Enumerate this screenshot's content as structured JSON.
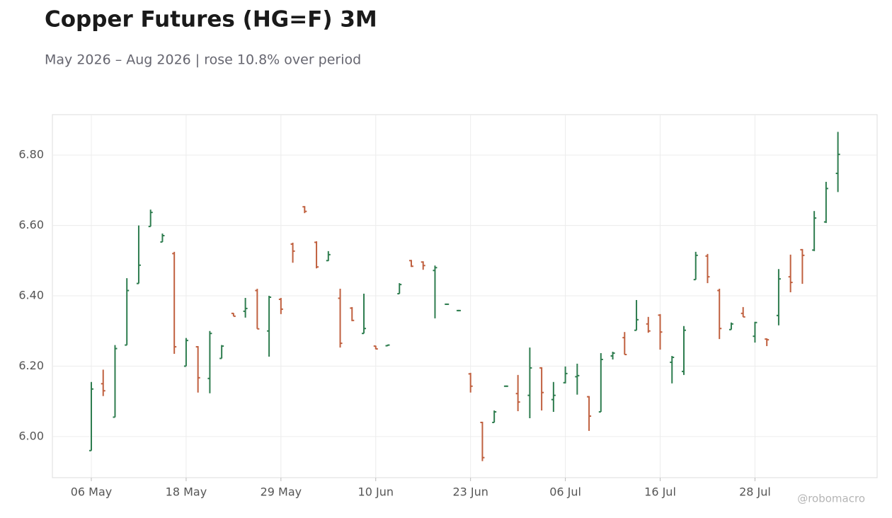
{
  "chart_data": {
    "type": "ohlc",
    "title": "Copper Futures (HG=F) 3M",
    "subtitle": "May 2026 – Aug 2026 | rose 10.8% over period",
    "watermark": "@robomacro",
    "categories": [
      "06 May",
      null,
      null,
      null,
      null,
      null,
      null,
      null,
      "18 May",
      null,
      null,
      null,
      null,
      null,
      null,
      null,
      "29 May",
      null,
      null,
      null,
      null,
      null,
      null,
      null,
      "10 Jun",
      null,
      null,
      null,
      null,
      null,
      null,
      null,
      "23 Jun",
      null,
      null,
      null,
      null,
      null,
      null,
      null,
      "06 Jul",
      null,
      null,
      null,
      null,
      null,
      null,
      null,
      "16 Jul",
      null,
      null,
      null,
      null,
      null,
      null,
      null,
      "28 Jul",
      null,
      null,
      null,
      null,
      null,
      null,
      null
    ],
    "open": [
      5.96,
      6.15,
      6.055,
      6.26,
      6.435,
      6.597,
      6.553,
      6.52,
      6.2,
      6.255,
      6.165,
      6.222,
      6.35,
      6.356,
      6.415,
      6.3,
      6.39,
      6.547,
      6.653,
      6.552,
      6.5,
      6.393,
      6.365,
      6.293,
      6.257,
      6.258,
      6.406,
      6.5,
      6.496,
      6.472,
      6.376,
      6.358,
      6.178,
      6.04,
      6.04,
      6.143,
      6.122,
      6.117,
      6.195,
      6.105,
      6.153,
      6.17,
      6.113,
      6.07,
      6.229,
      6.281,
      6.302,
      6.32,
      6.345,
      6.211,
      6.185,
      6.446,
      6.513,
      6.415,
      6.304,
      6.35,
      6.285,
      6.277,
      6.344,
      6.454,
      6.531,
      6.53,
      6.61,
      6.748
    ],
    "high": [
      6.155,
      6.19,
      6.26,
      6.45,
      6.6,
      6.645,
      6.577,
      6.525,
      6.28,
      6.257,
      6.3,
      6.26,
      6.351,
      6.394,
      6.42,
      6.4,
      6.394,
      6.551,
      6.655,
      6.555,
      6.527,
      6.42,
      6.368,
      6.406,
      6.258,
      6.261,
      6.436,
      6.502,
      6.498,
      6.486,
      6.378,
      6.36,
      6.181,
      6.042,
      6.074,
      6.145,
      6.175,
      6.253,
      6.197,
      6.155,
      6.199,
      6.207,
      6.115,
      6.237,
      6.241,
      6.297,
      6.388,
      6.34,
      6.348,
      6.229,
      6.314,
      6.525,
      6.519,
      6.42,
      6.324,
      6.368,
      6.326,
      6.279,
      6.476,
      6.517,
      6.533,
      6.641,
      6.724,
      6.866
    ],
    "low": [
      5.96,
      6.115,
      6.055,
      6.26,
      6.435,
      6.597,
      6.553,
      6.235,
      6.2,
      6.125,
      6.123,
      6.222,
      6.342,
      6.338,
      6.306,
      6.227,
      6.348,
      6.494,
      6.635,
      6.478,
      6.499,
      6.253,
      6.328,
      6.293,
      6.248,
      6.257,
      6.406,
      6.482,
      6.474,
      6.336,
      6.374,
      6.356,
      6.125,
      5.93,
      6.04,
      6.141,
      6.072,
      6.052,
      6.074,
      6.07,
      6.151,
      6.119,
      6.016,
      6.07,
      6.219,
      6.233,
      6.302,
      6.295,
      6.247,
      6.151,
      6.175,
      6.446,
      6.436,
      6.277,
      6.304,
      6.34,
      6.267,
      6.257,
      6.316,
      6.41,
      6.434,
      6.527,
      6.607,
      6.695
    ],
    "close": [
      6.135,
      6.13,
      6.25,
      6.415,
      6.487,
      6.637,
      6.571,
      6.255,
      6.273,
      6.167,
      6.293,
      6.257,
      6.342,
      6.364,
      6.306,
      6.396,
      6.362,
      6.527,
      6.64,
      6.482,
      6.517,
      6.265,
      6.33,
      6.307,
      6.249,
      6.26,
      6.432,
      6.484,
      6.486,
      6.48,
      6.376,
      6.358,
      6.143,
      5.94,
      6.07,
      6.143,
      6.098,
      6.195,
      6.125,
      6.117,
      6.179,
      6.173,
      6.058,
      6.219,
      6.237,
      6.233,
      6.332,
      6.3,
      6.297,
      6.225,
      6.302,
      6.515,
      6.454,
      6.307,
      6.32,
      6.34,
      6.324,
      6.275,
      6.448,
      6.438,
      6.515,
      6.621,
      6.705,
      6.802
    ],
    "up_color": "#2e7d4f",
    "down_color": "#c0603f",
    "ylim": [
      5.883,
      6.915
    ],
    "yticks": [
      {
        "value": 6.0,
        "label": "6.00"
      },
      {
        "value": 6.2,
        "label": "6.20"
      },
      {
        "value": 6.4,
        "label": "6.40"
      },
      {
        "value": 6.6,
        "label": "6.60"
      },
      {
        "value": 6.8,
        "label": "6.80"
      }
    ],
    "grid": true
  }
}
